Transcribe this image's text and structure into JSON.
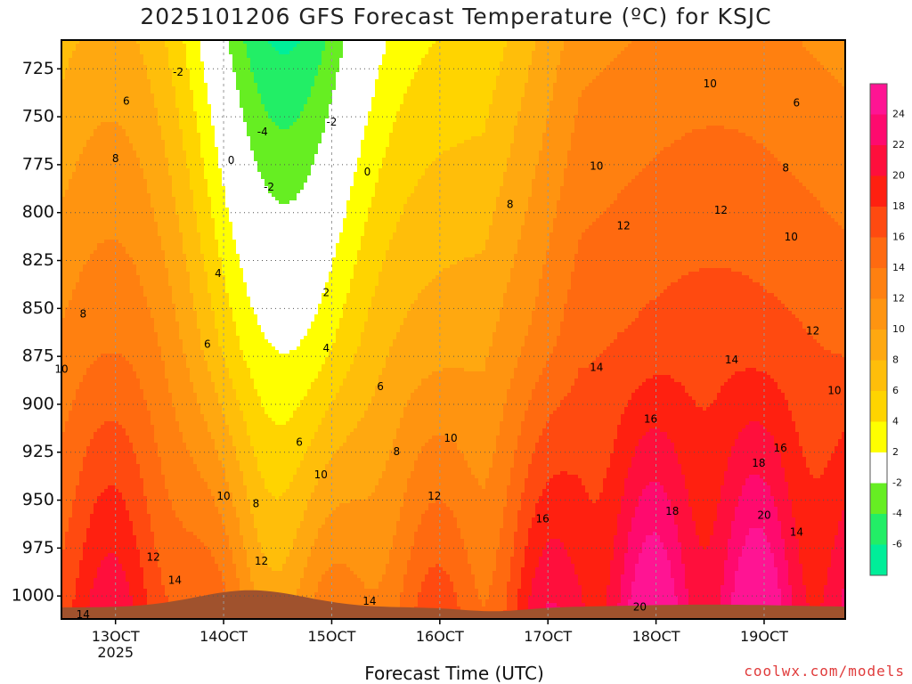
{
  "title": "2025101206 GFS Forecast Temperature (ºC) for KSJC",
  "credit": "coolwx.com/models",
  "chart_data": {
    "type": "heatmap",
    "title": "2025101206 GFS Forecast Temperature (ºC) for KSJC",
    "xlabel": "Forecast Time (UTC)",
    "ylabel": "",
    "x_ticks": [
      {
        "label": "13OCT",
        "sub": "2025",
        "day": 13
      },
      {
        "label": "14OCT",
        "sub": "",
        "day": 14
      },
      {
        "label": "15OCT",
        "sub": "",
        "day": 15
      },
      {
        "label": "16OCT",
        "sub": "",
        "day": 16
      },
      {
        "label": "17OCT",
        "sub": "",
        "day": 17
      },
      {
        "label": "18OCT",
        "sub": "",
        "day": 18
      },
      {
        "label": "19OCT",
        "sub": "",
        "day": 19
      }
    ],
    "xlim": [
      12.5,
      19.75
    ],
    "y_ticks": [
      725,
      750,
      775,
      800,
      825,
      850,
      875,
      900,
      925,
      950,
      975,
      1000
    ],
    "ylim": [
      1012,
      710
    ],
    "colorbar": {
      "ticks": [
        24,
        22,
        20,
        18,
        16,
        14,
        12,
        10,
        8,
        6,
        4,
        2,
        -2,
        -4,
        -6
      ],
      "bins": [
        {
          "lo": 24,
          "hi": 26,
          "color": "#ff1493"
        },
        {
          "lo": 22,
          "hi": 24,
          "color": "#ff0a6e"
        },
        {
          "lo": 20,
          "hi": 22,
          "color": "#ff0f3c"
        },
        {
          "lo": 18,
          "hi": 20,
          "color": "#ff2010"
        },
        {
          "lo": 16,
          "hi": 18,
          "color": "#ff4a10"
        },
        {
          "lo": 14,
          "hi": 16,
          "color": "#ff6a10"
        },
        {
          "lo": 12,
          "hi": 14,
          "color": "#ff8010"
        },
        {
          "lo": 10,
          "hi": 12,
          "color": "#ff9410"
        },
        {
          "lo": 8,
          "hi": 10,
          "color": "#ffa810"
        },
        {
          "lo": 6,
          "hi": 8,
          "color": "#ffbe0a"
        },
        {
          "lo": 4,
          "hi": 6,
          "color": "#ffd400"
        },
        {
          "lo": 2,
          "hi": 4,
          "color": "#ffff00"
        },
        {
          "lo": -2,
          "hi": 2,
          "color": "#ffffff"
        },
        {
          "lo": -4,
          "hi": -2,
          "color": "#66ee22"
        },
        {
          "lo": -6,
          "hi": -4,
          "color": "#22ee66"
        },
        {
          "lo": -8,
          "hi": -6,
          "color": "#00ee99"
        }
      ]
    },
    "contour_labels": [
      {
        "value": "-2",
        "day": 13.58,
        "p": 727
      },
      {
        "value": "-4",
        "day": 14.36,
        "p": 758
      },
      {
        "value": "-2",
        "day": 14.42,
        "p": 787
      },
      {
        "value": "-2",
        "day": 15.0,
        "p": 753
      },
      {
        "value": "0",
        "day": 14.07,
        "p": 773
      },
      {
        "value": "0",
        "day": 15.33,
        "p": 779
      },
      {
        "value": "6",
        "day": 13.1,
        "p": 742
      },
      {
        "value": "8",
        "day": 13.0,
        "p": 772
      },
      {
        "value": "8",
        "day": 12.7,
        "p": 853
      },
      {
        "value": "10",
        "day": 12.5,
        "p": 882
      },
      {
        "value": "4",
        "day": 13.95,
        "p": 832
      },
      {
        "value": "6",
        "day": 13.85,
        "p": 869
      },
      {
        "value": "2",
        "day": 14.95,
        "p": 842
      },
      {
        "value": "4",
        "day": 14.95,
        "p": 871
      },
      {
        "value": "6",
        "day": 15.45,
        "p": 891
      },
      {
        "value": "6",
        "day": 14.7,
        "p": 920
      },
      {
        "value": "8",
        "day": 15.6,
        "p": 925
      },
      {
        "value": "8",
        "day": 16.65,
        "p": 796
      },
      {
        "value": "10",
        "day": 16.1,
        "p": 918
      },
      {
        "value": "10",
        "day": 14.0,
        "p": 948
      },
      {
        "value": "8",
        "day": 14.3,
        "p": 952
      },
      {
        "value": "10",
        "day": 14.9,
        "p": 937
      },
      {
        "value": "12",
        "day": 15.95,
        "p": 948
      },
      {
        "value": "12",
        "day": 13.35,
        "p": 980
      },
      {
        "value": "14",
        "day": 13.55,
        "p": 992
      },
      {
        "value": "12",
        "day": 14.35,
        "p": 982
      },
      {
        "value": "14",
        "day": 15.35,
        "p": 1003
      },
      {
        "value": "14",
        "day": 12.7,
        "p": 1010
      },
      {
        "value": "10",
        "day": 17.45,
        "p": 776
      },
      {
        "value": "10",
        "day": 18.5,
        "p": 733
      },
      {
        "value": "12",
        "day": 17.7,
        "p": 807
      },
      {
        "value": "12",
        "day": 18.6,
        "p": 799
      },
      {
        "value": "14",
        "day": 17.45,
        "p": 881
      },
      {
        "value": "14",
        "day": 18.7,
        "p": 877
      },
      {
        "value": "16",
        "day": 16.95,
        "p": 960
      },
      {
        "value": "16",
        "day": 17.95,
        "p": 908
      },
      {
        "value": "18",
        "day": 18.15,
        "p": 956
      },
      {
        "value": "20",
        "day": 17.85,
        "p": 1006
      },
      {
        "value": "18",
        "day": 18.95,
        "p": 931
      },
      {
        "value": "20",
        "day": 19.0,
        "p": 958
      },
      {
        "value": "16",
        "day": 19.15,
        "p": 923
      },
      {
        "value": "14",
        "day": 19.3,
        "p": 967
      },
      {
        "value": "12",
        "day": 19.45,
        "p": 862
      },
      {
        "value": "10",
        "day": 19.25,
        "p": 813
      },
      {
        "value": "8",
        "day": 19.2,
        "p": 777
      },
      {
        "value": "6",
        "day": 19.3,
        "p": 743
      },
      {
        "value": "10",
        "day": 19.65,
        "p": 893
      }
    ],
    "terrain_color": "#a0522d",
    "grid": "dotted"
  }
}
